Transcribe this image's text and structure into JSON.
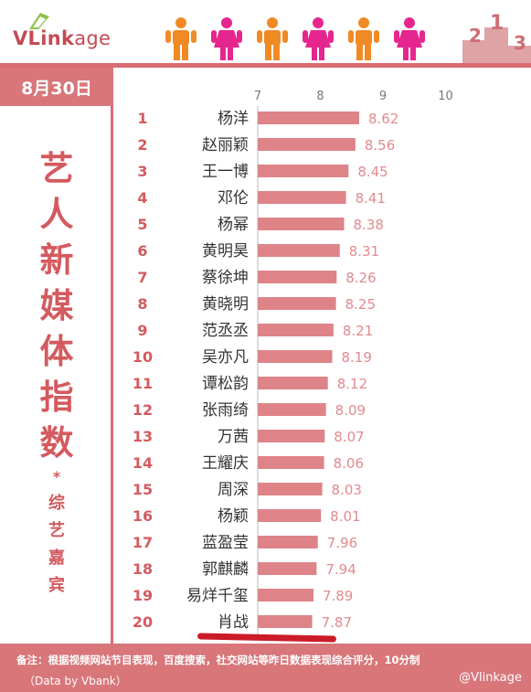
{
  "brand": {
    "logo_bold": "VLink",
    "logo_light": "age"
  },
  "colors": {
    "accent": "#d8767a",
    "bar": "#de8488",
    "value": "#e28a8e",
    "text": "#d45a5f"
  },
  "date": "8月30日",
  "title_chars": [
    "艺",
    "人",
    "新",
    "媒",
    "体",
    "指",
    "数"
  ],
  "title_star": "*",
  "subtitle_chars": [
    "综",
    "艺",
    "嘉",
    "宾"
  ],
  "chart_data": {
    "type": "bar",
    "orientation": "horizontal",
    "title": "艺人新媒体指数 综艺嘉宾",
    "xlim": [
      7,
      10
    ],
    "xticks": [
      "7",
      "8",
      "9",
      "10"
    ],
    "ranks": [
      "1",
      "2",
      "3",
      "4",
      "5",
      "6",
      "7",
      "8",
      "9",
      "10",
      "11",
      "12",
      "13",
      "14",
      "15",
      "16",
      "17",
      "18",
      "19",
      "20"
    ],
    "categories": [
      "杨洋",
      "赵丽颖",
      "王一博",
      "邓伦",
      "杨幂",
      "黄明昊",
      "蔡徐坤",
      "黄晓明",
      "范丞丞",
      "吴亦凡",
      "谭松韵",
      "张雨绮",
      "万茜",
      "王耀庆",
      "周深",
      "杨颖",
      "蓝盈莹",
      "郭麒麟",
      "易烊千玺",
      "肖战"
    ],
    "values": [
      8.62,
      8.56,
      8.45,
      8.41,
      8.38,
      8.31,
      8.26,
      8.25,
      8.21,
      8.19,
      8.12,
      8.09,
      8.07,
      8.06,
      8.03,
      8.01,
      7.96,
      7.94,
      7.89,
      7.87
    ],
    "value_labels": [
      "8.62",
      "8.56",
      "8.45",
      "8.41",
      "8.38",
      "8.31",
      "8.26",
      "8.25",
      "8.21",
      "8.19",
      "8.12",
      "8.09",
      "8.07",
      "8.06",
      "8.03",
      "8.01",
      "7.96",
      "7.94",
      "7.89",
      "7.87"
    ],
    "grid": false,
    "legend": "none"
  },
  "footer": {
    "note": "备注：根据视频网站节目表现，百度搜索，社交网站等昨日数据表现综合评分，10分制",
    "source": "（Data by Vbank）",
    "weibo": "@Vlinkage"
  }
}
